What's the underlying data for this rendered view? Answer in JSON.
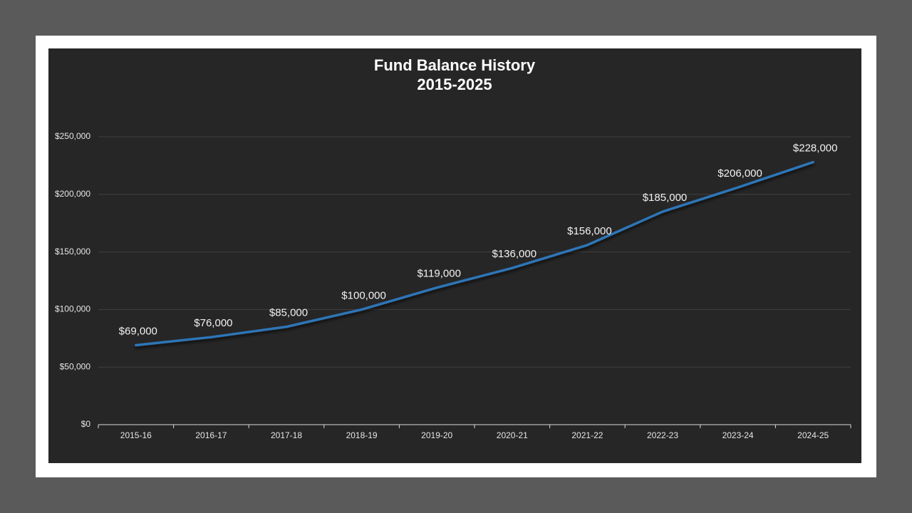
{
  "chart_data": {
    "type": "line",
    "title": "Fund Balance History",
    "subtitle": "2015-2025",
    "categories": [
      "2015-16",
      "2016-17",
      "2017-18",
      "2018-19",
      "2019-20",
      "2020-21",
      "2021-22",
      "2022-23",
      "2023-24",
      "2024-25"
    ],
    "values": [
      69000,
      76000,
      85000,
      100000,
      119000,
      136000,
      156000,
      185000,
      206000,
      228000
    ],
    "value_labels": [
      "$69,000",
      "$76,000",
      "$85,000",
      "$100,000",
      "$119,000",
      "$136,000",
      "$156,000",
      "$185,000",
      "$206,000",
      "$228,000"
    ],
    "color": "#2e75b6",
    "ylim": [
      0,
      250000
    ],
    "yticks": [
      {
        "value": 0,
        "label": "$0"
      },
      {
        "value": 50000,
        "label": "$50,000"
      },
      {
        "value": 100000,
        "label": "$100,000"
      },
      {
        "value": 150000,
        "label": "$150,000"
      },
      {
        "value": 200000,
        "label": "$200,000"
      },
      {
        "value": 250000,
        "label": "$250,000"
      }
    ],
    "grid": true
  }
}
